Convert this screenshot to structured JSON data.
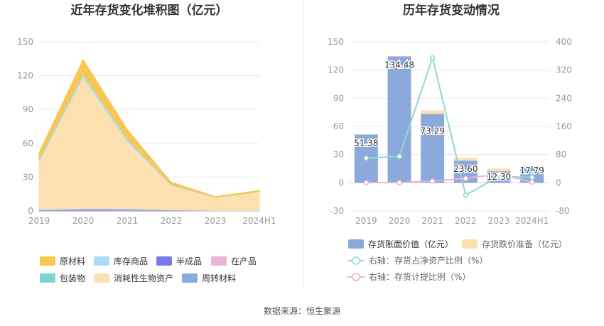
{
  "source": "数据来源：恒生聚源",
  "chart_data": [
    {
      "type": "area",
      "stacked": true,
      "title": "近年存货变化堆积图（亿元）",
      "categories": [
        "2019",
        "2020",
        "2021",
        "2022",
        "2023",
        "2024H1"
      ],
      "ylim": [
        0,
        150
      ],
      "yticks": [
        0,
        30,
        60,
        90,
        120,
        150
      ],
      "grid": true,
      "legend_position": "bottom",
      "series": [
        {
          "name": "原材料",
          "color": "#F9C74F",
          "values": [
            5.5,
            12.5,
            8.0,
            2.0,
            0.6,
            1.0
          ]
        },
        {
          "name": "库存商品",
          "color": "#A8DDF5",
          "values": [
            2.0,
            3.0,
            2.5,
            0.7,
            0.3,
            0.3
          ]
        },
        {
          "name": "半成品",
          "color": "#7B7BEE",
          "values": [
            0.4,
            0.6,
            0.5,
            0.3,
            0.1,
            0.1
          ]
        },
        {
          "name": "在产品",
          "color": "#E8B4D8",
          "values": [
            0.2,
            0.3,
            0.3,
            0.1,
            0.1,
            0.1
          ]
        },
        {
          "name": "包装物",
          "color": "#7ED3D3",
          "values": [
            0.0,
            0.0,
            0.0,
            0.0,
            0.0,
            0.0
          ]
        },
        {
          "name": "消耗性生物资产",
          "color": "#FCE0B0",
          "values": [
            43.0,
            117.0,
            60.0,
            22.0,
            11.5,
            16.5
          ]
        },
        {
          "name": "周转材料",
          "color": "#8CA9DB",
          "values": [
            0.5,
            1.0,
            1.0,
            0.5,
            0.2,
            0.2
          ]
        }
      ]
    },
    {
      "type": "bar",
      "title": "历年存货变动情况",
      "categories": [
        "2019",
        "2020",
        "2021",
        "2022",
        "2023",
        "2024H1"
      ],
      "ylim": [
        -30,
        150
      ],
      "yticks": [
        -30,
        0,
        30,
        60,
        90,
        120,
        150
      ],
      "y2lim": [
        -80,
        400
      ],
      "y2ticks": [
        -80,
        0,
        80,
        160,
        240,
        320,
        400
      ],
      "grid": true,
      "legend_position": "bottom",
      "series": [
        {
          "name": "存货账面价值（亿元）",
          "type": "bar",
          "axis": "left",
          "color": "#8CA9DB",
          "values": [
            51.38,
            134.48,
            73.29,
            23.6,
            12.3,
            17.79
          ],
          "labels": [
            "51.38",
            "134.48",
            "73.29",
            "23.60",
            "12.30",
            "17.79"
          ]
        },
        {
          "name": "存货跌价准备（亿元）",
          "type": "bar",
          "axis": "left",
          "color": "#FCE0B0",
          "values": [
            0.2,
            0.3,
            3.8,
            3.0,
            2.9,
            0.4
          ]
        },
        {
          "name": "右轴：存货占净资产比例（%）",
          "type": "line",
          "axis": "right",
          "color": "#8FD8D8",
          "values": [
            70,
            75,
            355,
            -35,
            18,
            15
          ]
        },
        {
          "name": "右轴：存货计提比例（%）",
          "type": "line",
          "axis": "right",
          "color": "#E8B4D8",
          "values": [
            0.5,
            0.5,
            5,
            12,
            25,
            2
          ]
        }
      ]
    }
  ]
}
